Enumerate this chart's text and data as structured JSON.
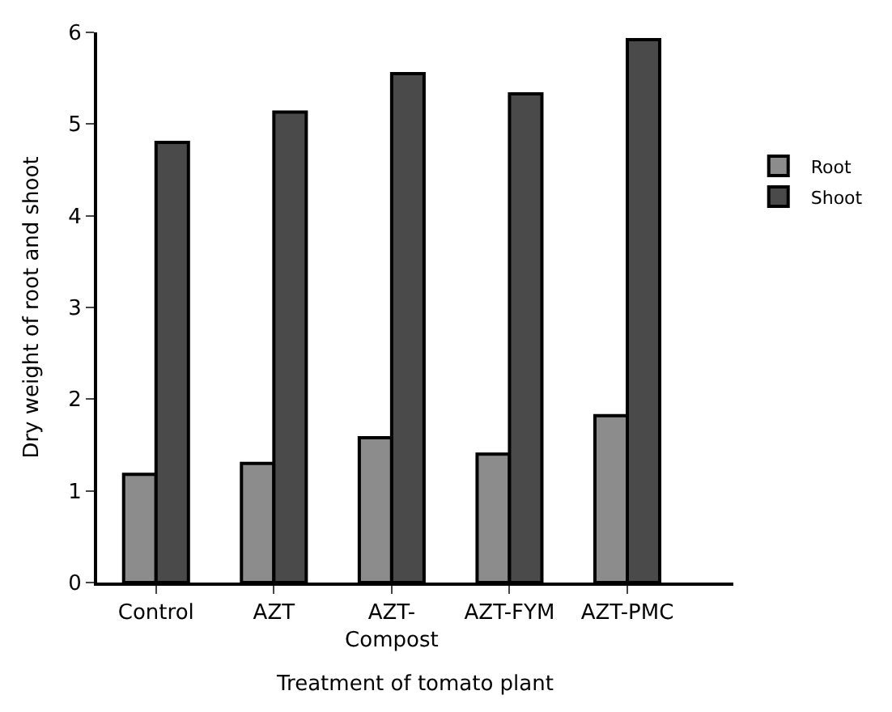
{
  "chart_data": {
    "type": "bar",
    "xlabel": "Treatment of tomato plant",
    "ylabel": "Dry weight of root and shoot",
    "categories": [
      "Control",
      "AZT",
      "AZT-Compost",
      "AZT-FYM",
      "AZT-PMC"
    ],
    "series": [
      {
        "name": "Root",
        "color": "#8c8c8c",
        "values": [
          1.18,
          1.3,
          1.58,
          1.4,
          1.82
        ]
      },
      {
        "name": "Shoot",
        "color": "#4a4a4a",
        "values": [
          4.8,
          5.13,
          5.55,
          5.33,
          5.92
        ]
      }
    ],
    "ylim": [
      0,
      6
    ],
    "yticks": [
      0,
      1,
      2,
      3,
      4,
      5,
      6
    ],
    "legend": "right"
  }
}
